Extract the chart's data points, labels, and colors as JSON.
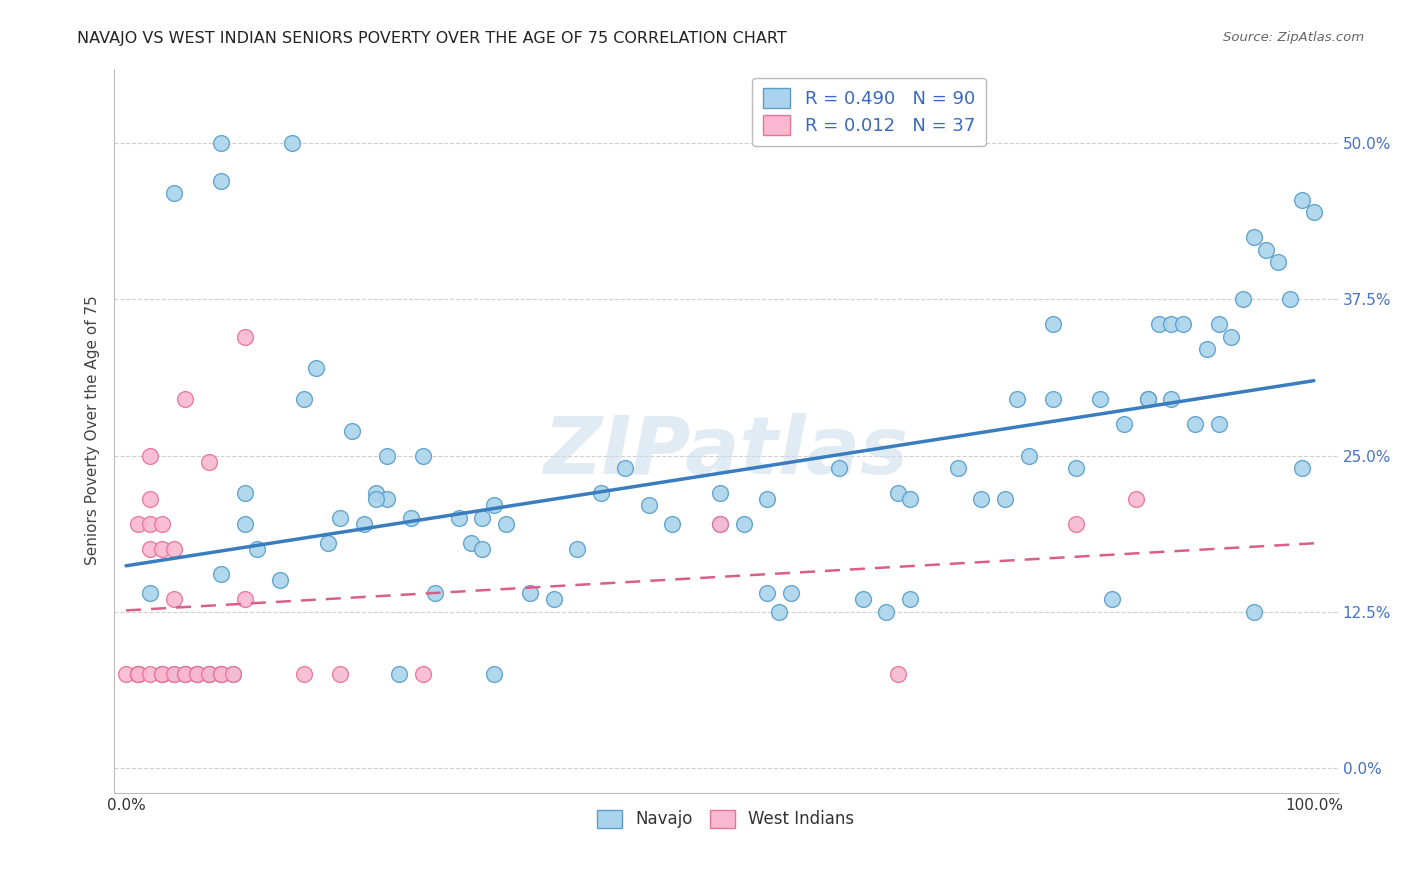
{
  "title": "NAVAJO VS WEST INDIAN SENIORS POVERTY OVER THE AGE OF 75 CORRELATION CHART",
  "source": "Source: ZipAtlas.com",
  "ylabel": "Seniors Poverty Over the Age of 75",
  "xlim": [
    -0.01,
    1.02
  ],
  "ylim": [
    -0.02,
    0.56
  ],
  "yticks": [
    0.0,
    0.125,
    0.25,
    0.375,
    0.5
  ],
  "ytick_labels": [
    "0.0%",
    "12.5%",
    "25.0%",
    "37.5%",
    "50.0%"
  ],
  "xticks": [
    0.0,
    1.0
  ],
  "xtick_labels": [
    "0.0%",
    "100.0%"
  ],
  "navajo_R": 0.49,
  "navajo_N": 90,
  "westindian_R": 0.012,
  "westindian_N": 37,
  "navajo_fill_color": "#aad4ed",
  "navajo_edge_color": "#5b9ec9",
  "westindian_fill_color": "#f9b8d0",
  "westindian_edge_color": "#e8749a",
  "navajo_line_color": "#3a7dbf",
  "westindian_line_color": "#d95f8a",
  "watermark": "ZIPatlas",
  "bg_color": "#ffffff",
  "grid_color": "#d0d0d0",
  "tick_label_color": "#4472c4",
  "xtick_label_color": "#333333",
  "title_color": "#222222",
  "source_color": "#666666",
  "navajo_x": [
    0.04,
    0.02,
    0.08,
    0.1,
    0.1,
    0.11,
    0.13,
    0.15,
    0.16,
    0.17,
    0.18,
    0.19,
    0.2,
    0.21,
    0.22,
    0.22,
    0.24,
    0.25,
    0.26,
    0.28,
    0.29,
    0.3,
    0.3,
    0.31,
    0.32,
    0.34,
    0.36,
    0.38,
    0.4,
    0.42,
    0.44,
    0.46,
    0.5,
    0.52,
    0.54,
    0.54,
    0.56,
    0.6,
    0.62,
    0.65,
    0.66,
    0.66,
    0.7,
    0.72,
    0.74,
    0.75,
    0.76,
    0.78,
    0.78,
    0.8,
    0.82,
    0.84,
    0.86,
    0.86,
    0.87,
    0.88,
    0.88,
    0.89,
    0.9,
    0.91,
    0.92,
    0.92,
    0.93,
    0.94,
    0.95,
    0.96,
    0.97,
    0.98,
    0.99,
    0.99,
    1.0,
    0.03,
    0.04,
    0.05,
    0.06,
    0.07,
    0.07,
    0.08,
    0.09,
    0.21,
    0.23,
    0.31,
    0.5,
    0.55,
    0.64,
    0.83,
    0.95,
    0.14,
    0.08,
    0.08
  ],
  "navajo_y": [
    0.46,
    0.14,
    0.155,
    0.22,
    0.195,
    0.175,
    0.15,
    0.295,
    0.32,
    0.18,
    0.2,
    0.27,
    0.195,
    0.22,
    0.25,
    0.215,
    0.2,
    0.25,
    0.14,
    0.2,
    0.18,
    0.2,
    0.175,
    0.21,
    0.195,
    0.14,
    0.135,
    0.175,
    0.22,
    0.24,
    0.21,
    0.195,
    0.22,
    0.195,
    0.14,
    0.215,
    0.14,
    0.24,
    0.135,
    0.22,
    0.135,
    0.215,
    0.24,
    0.215,
    0.215,
    0.295,
    0.25,
    0.355,
    0.295,
    0.24,
    0.295,
    0.275,
    0.295,
    0.295,
    0.355,
    0.295,
    0.355,
    0.355,
    0.275,
    0.335,
    0.355,
    0.275,
    0.345,
    0.375,
    0.425,
    0.415,
    0.405,
    0.375,
    0.24,
    0.455,
    0.445,
    0.075,
    0.075,
    0.075,
    0.075,
    0.075,
    0.075,
    0.075,
    0.075,
    0.215,
    0.075,
    0.075,
    0.195,
    0.125,
    0.125,
    0.135,
    0.125,
    0.5,
    0.5,
    0.47
  ],
  "westindian_x": [
    0.0,
    0.01,
    0.01,
    0.01,
    0.01,
    0.01,
    0.02,
    0.02,
    0.02,
    0.02,
    0.02,
    0.03,
    0.03,
    0.03,
    0.03,
    0.04,
    0.04,
    0.04,
    0.05,
    0.05,
    0.05,
    0.06,
    0.06,
    0.07,
    0.07,
    0.08,
    0.08,
    0.09,
    0.1,
    0.1,
    0.15,
    0.18,
    0.25,
    0.5,
    0.65,
    0.8,
    0.85
  ],
  "westindian_y": [
    0.075,
    0.195,
    0.075,
    0.075,
    0.075,
    0.075,
    0.25,
    0.215,
    0.195,
    0.175,
    0.075,
    0.195,
    0.175,
    0.075,
    0.075,
    0.135,
    0.175,
    0.075,
    0.295,
    0.075,
    0.075,
    0.075,
    0.075,
    0.075,
    0.245,
    0.075,
    0.075,
    0.075,
    0.135,
    0.345,
    0.075,
    0.075,
    0.075,
    0.195,
    0.075,
    0.195,
    0.215
  ]
}
